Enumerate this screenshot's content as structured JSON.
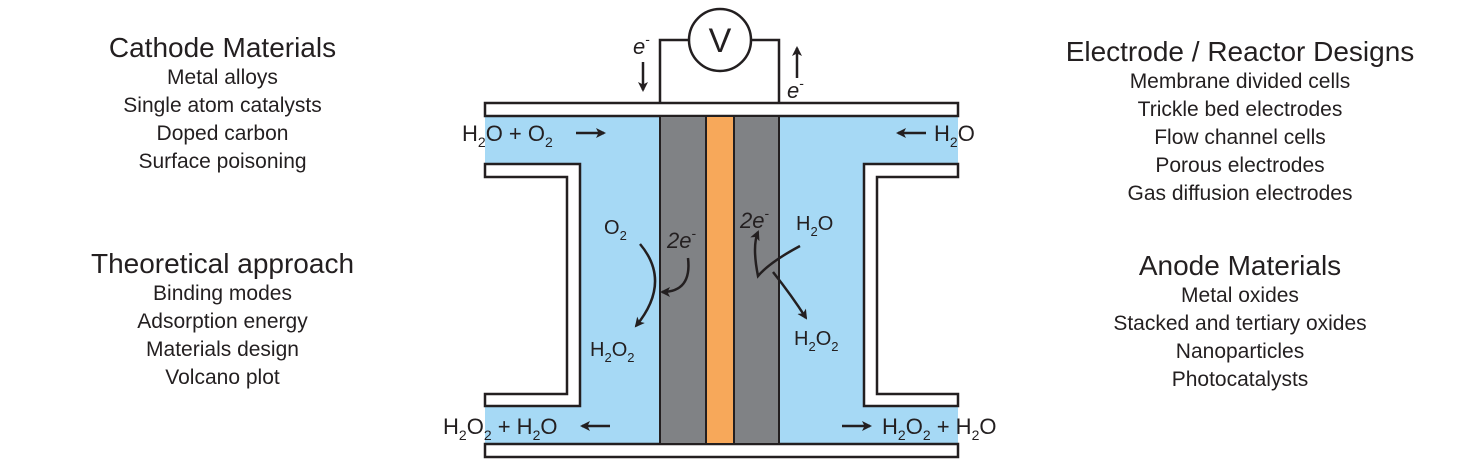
{
  "cathode_materials": {
    "title": "Cathode Materials",
    "items": [
      "Metal alloys",
      "Single atom catalysts",
      "Doped carbon",
      "Surface poisoning"
    ]
  },
  "theoretical_approach": {
    "title": "Theoretical approach",
    "items": [
      "Binding modes",
      "Adsorption energy",
      "Materials design",
      "Volcano plot"
    ]
  },
  "electrode_reactor_designs": {
    "title": "Electrode / Reactor Designs",
    "items": [
      "Membrane divided cells",
      "Trickle bed electrodes",
      "Flow channel cells",
      "Porous electrodes",
      "Gas diffusion electrodes"
    ]
  },
  "anode_materials": {
    "title": "Anode Materials",
    "items": [
      "Metal oxides",
      "Stacked and tertiary oxides",
      "Nanoparticles",
      "Photocatalysts"
    ]
  },
  "cell": {
    "voltmeter": "V",
    "electron": "e",
    "electron_charge": "-",
    "two_e": "2e",
    "inlet_left": "H2O + O2",
    "inlet_right": "H2O",
    "outlet_left": "H2O2 + H2O",
    "outlet_right": "H2O2 + H2O",
    "cathode_reactant": "O2",
    "cathode_product": "H2O2",
    "anode_reactant": "H2O",
    "anode_product": "H2O2"
  },
  "colors": {
    "electrolyte": "#a6d9f5",
    "electrode": "#808285",
    "membrane": "#f7a85a",
    "line": "#231f20"
  }
}
